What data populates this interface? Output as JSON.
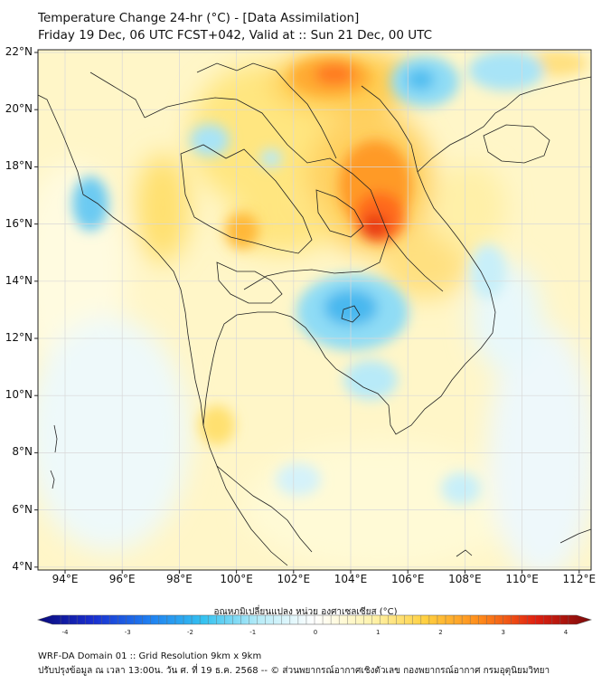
{
  "title_line1": "Temperature Change 24-hr (°C) - [Data Assimilation]",
  "title_line2": "Friday 19 Dec, 06 UTC FCST+042, Valid at :: Sun 21 Dec, 00 UTC",
  "lat_labels": [
    "22°N",
    "20°N",
    "18°N",
    "16°N",
    "14°N",
    "12°N",
    "10°N",
    "8°N",
    "6°N",
    "4°N"
  ],
  "lon_labels": [
    "94°E",
    "96°E",
    "98°E",
    "100°E",
    "102°E",
    "104°E",
    "106°E",
    "108°E",
    "110°E",
    "112°E"
  ],
  "colorbar": {
    "label": "อุณหภูมิเปลี่ยนแปลง หน่วย องศาเซลเซียส (°C)",
    "ticks": [
      "-4",
      "-3",
      "-2",
      "-1",
      "0",
      "1",
      "2",
      "3",
      "4"
    ],
    "min": -4,
    "max": 4,
    "colors": [
      "#0a0a7a",
      "#1a2fd0",
      "#1f7ef0",
      "#35c2f0",
      "#b8ecf8",
      "#ffffff",
      "#fff4b0",
      "#ffd040",
      "#ff8a1a",
      "#e02010",
      "#7a0a0a"
    ]
  },
  "footer_line1": "WRF-DA Domain 01 :: Grid Resolution 9km x 9km",
  "footer_line2": "ปรับปรุงข้อมูล ณ เวลา 13:00น. วัน ศ. ที่ 19 ธ.ค. 2568 -- © ส่วนพยากรณ์อากาศเชิงตัวเลข กองพยากรณ์อากาศ กรมอุตุนิยมวิทยา"
}
